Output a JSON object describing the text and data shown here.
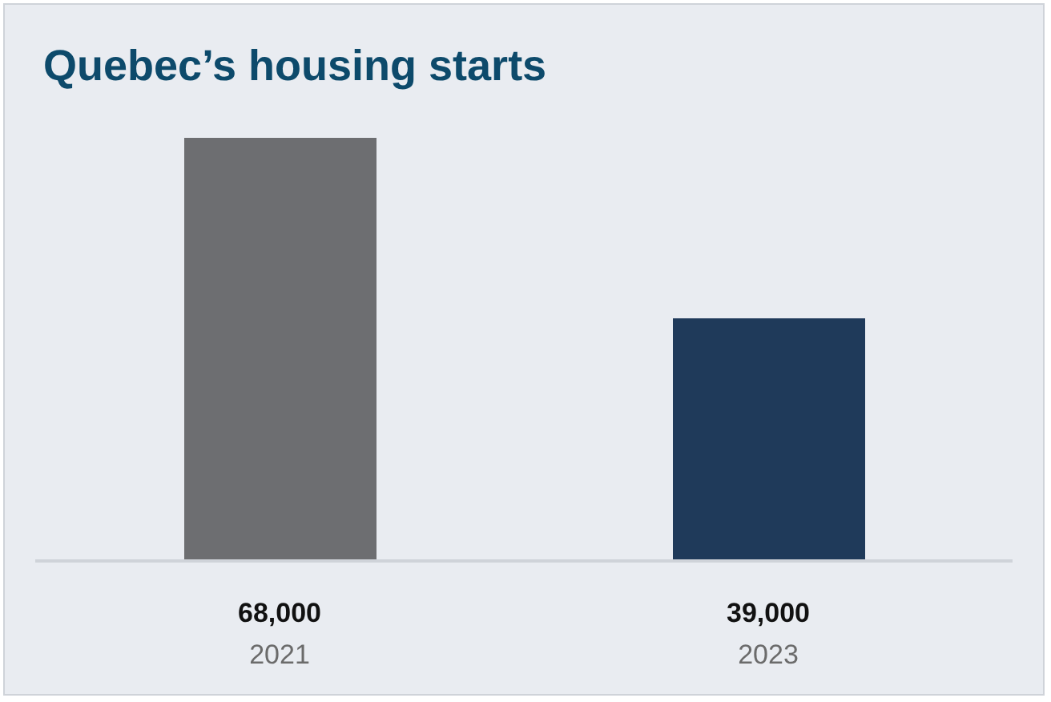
{
  "chart_data": {
    "type": "bar",
    "title": "Quebec’s housing starts",
    "categories": [
      "2021",
      "2023"
    ],
    "values": [
      68000,
      39000
    ],
    "colors": [
      "#6d6e71",
      "#1f3a5a"
    ],
    "value_labels": [
      "68,000",
      "39,000"
    ]
  }
}
